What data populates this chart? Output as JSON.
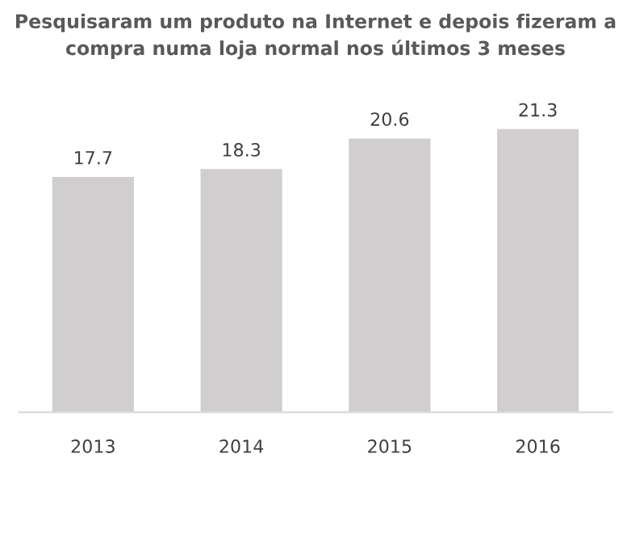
{
  "chart_data": {
    "type": "bar",
    "title": "Pesquisaram um produto na Internet e depois fizeram a compra numa loja normal nos últimos 3 meses",
    "categories": [
      "2013",
      "2014",
      "2015",
      "2016"
    ],
    "values": [
      17.7,
      18.3,
      20.6,
      21.3
    ],
    "color": "#d0cece",
    "data_labels": true,
    "grid": false,
    "legend": false
  }
}
